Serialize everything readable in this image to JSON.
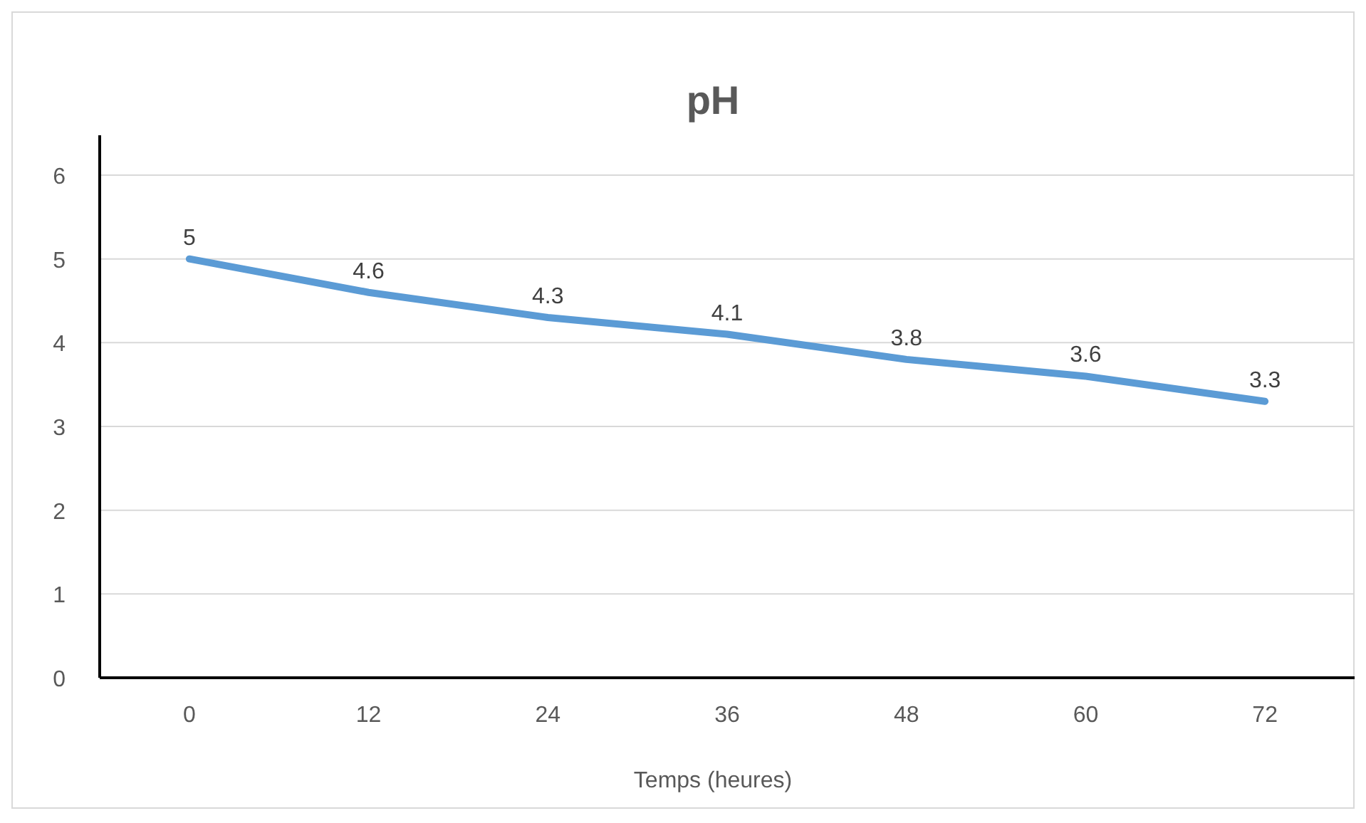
{
  "chart_data": {
    "type": "line",
    "title": "pH",
    "xlabel": "Temps (heures)",
    "categories": [
      "0",
      "12",
      "24",
      "36",
      "48",
      "60",
      "72"
    ],
    "series": [
      {
        "color": "#5b9bd5",
        "values": [
          5,
          4.6,
          4.3,
          4.1,
          3.8,
          3.6,
          3.3
        ]
      }
    ],
    "ylim": [
      0,
      6
    ],
    "yticks": [
      0,
      1,
      2,
      3,
      4,
      5,
      6
    ],
    "grid": "y",
    "data_labels": true,
    "marker": "none",
    "line_style": "solid"
  }
}
